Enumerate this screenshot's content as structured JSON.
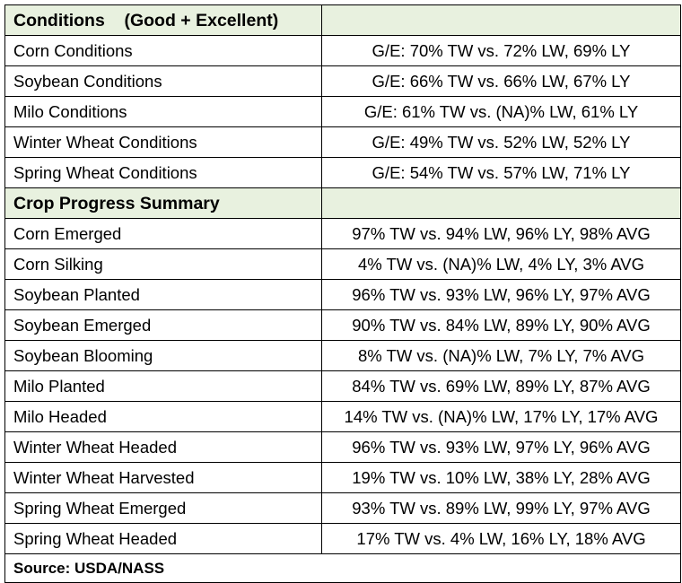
{
  "conditions": {
    "title": "Conditions    (Good + Excellent)",
    "rows": [
      {
        "label": "Corn Conditions",
        "value": "G/E: 70% TW vs. 72% LW, 69% LY"
      },
      {
        "label": "Soybean Conditions",
        "value": "G/E: 66% TW vs. 66% LW, 67% LY"
      },
      {
        "label": "Milo Conditions",
        "value": "G/E: 61% TW vs. (NA)% LW, 61% LY"
      },
      {
        "label": "Winter Wheat Conditions",
        "value": "G/E: 49% TW vs. 52% LW, 52% LY"
      },
      {
        "label": "Spring Wheat Conditions",
        "value": "G/E: 54% TW vs. 57% LW, 71% LY"
      }
    ]
  },
  "progress": {
    "title": "Crop Progress Summary",
    "rows": [
      {
        "label": "Corn Emerged",
        "value": "97% TW vs. 94% LW, 96% LY, 98% AVG"
      },
      {
        "label": "Corn Silking",
        "value": "4% TW vs. (NA)% LW, 4% LY, 3% AVG"
      },
      {
        "label": "Soybean Planted",
        "value": "96% TW vs. 93% LW, 96% LY, 97% AVG"
      },
      {
        "label": "Soybean Emerged",
        "value": "90% TW vs. 84% LW, 89% LY, 90% AVG"
      },
      {
        "label": "Soybean Blooming",
        "value": "8% TW vs. (NA)% LW, 7% LY, 7% AVG"
      },
      {
        "label": "Milo Planted",
        "value": "84% TW vs. 69% LW, 89% LY, 87% AVG"
      },
      {
        "label": "Milo Headed",
        "value": "14% TW vs. (NA)% LW, 17% LY, 17% AVG"
      },
      {
        "label": "Winter Wheat Headed",
        "value": "96% TW vs. 93% LW, 97% LY, 96% AVG"
      },
      {
        "label": "Winter Wheat Harvested",
        "value": "19% TW vs. 10% LW, 38% LY, 28% AVG"
      },
      {
        "label": "Spring Wheat Emerged",
        "value": "93% TW vs. 89% LW, 99% LY, 97% AVG"
      },
      {
        "label": "Spring Wheat Headed",
        "value": "17% TW vs. 4% LW, 16% LY, 18% AVG"
      }
    ]
  },
  "source": "Source: USDA/NASS",
  "colors": {
    "section_header_bg": "#e8f1df",
    "border": "#000000"
  }
}
